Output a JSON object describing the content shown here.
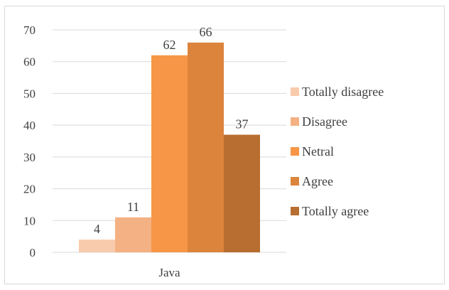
{
  "chart_data": {
    "type": "bar",
    "title": "",
    "xlabel": "",
    "ylabel": "",
    "categories": [
      "Java"
    ],
    "series": [
      {
        "name": "Totally disagree",
        "values": [
          4
        ],
        "color": "#F8CBAD"
      },
      {
        "name": "Disagree",
        "values": [
          11
        ],
        "color": "#F4B183"
      },
      {
        "name": "Netral",
        "values": [
          62
        ],
        "color": "#F79646"
      },
      {
        "name": "Agree",
        "values": [
          66
        ],
        "color": "#DC843C"
      },
      {
        "name": "Totally agree",
        "values": [
          37
        ],
        "color": "#B86E30"
      }
    ],
    "ylim": [
      0,
      70
    ],
    "yticks": [
      0,
      10,
      20,
      30,
      40,
      50,
      60,
      70
    ],
    "grid": true,
    "legend_position": "right",
    "data_labels": true
  }
}
